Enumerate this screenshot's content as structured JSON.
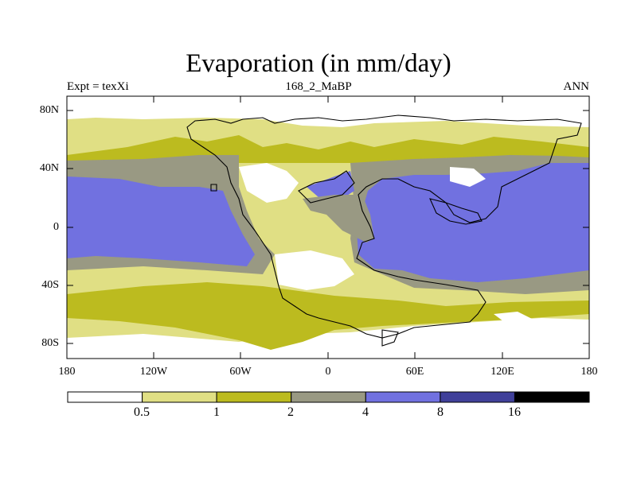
{
  "figure": {
    "title": "Evaporation (in mm/day)",
    "left_subtitle": "Expt = texXi",
    "center_subtitle": "168_2_MaBP",
    "right_subtitle": "ANN"
  },
  "map": {
    "projection": "cylindrical equidistant",
    "lon_range": [
      -180,
      180
    ],
    "lat_range": [
      -90,
      90
    ],
    "lon_ticks": [
      "180",
      "120W",
      "60W",
      "0",
      "60E",
      "120E",
      "180"
    ],
    "lat_ticks": [
      "80N",
      "40N",
      "0",
      "40S",
      "80S"
    ],
    "feature": "paleo-continent outlines (168 Ma)"
  },
  "colorbar": {
    "levels": [
      "0.5",
      "1",
      "2",
      "4",
      "8",
      "16"
    ],
    "colors": [
      "#ffffff",
      "#e0df84",
      "#bcbb1f",
      "#999983",
      "#7171e0",
      "#40409a",
      "#000000"
    ]
  }
}
